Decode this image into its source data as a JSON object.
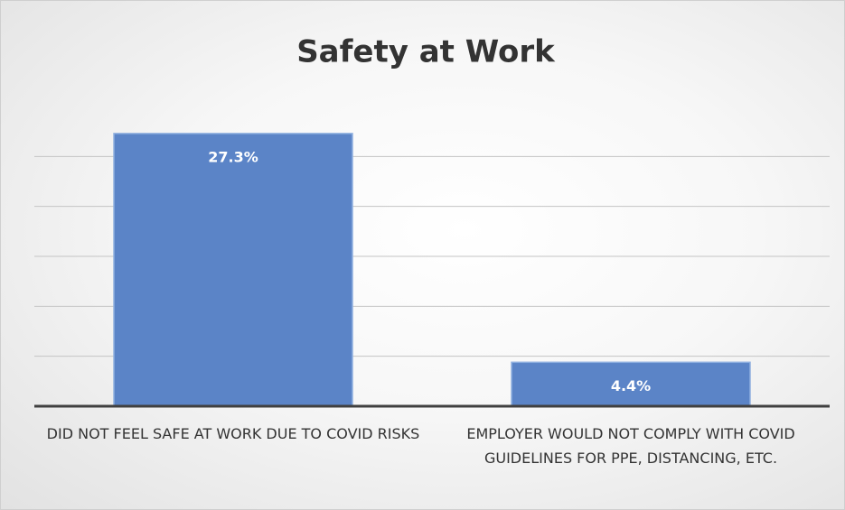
{
  "chart_data": {
    "type": "bar",
    "title": "Safety at Work",
    "categories": [
      "DID NOT FEEL SAFE AT WORK DUE TO COVID RISKS",
      "EMPLOYER WOULD NOT COMPLY WITH COVID GUIDELINES FOR PPE, DISTANCING, ETC."
    ],
    "values": [
      27.3,
      4.4
    ],
    "value_labels": [
      "27.3%",
      "4.4%"
    ],
    "color": "#5b84c7",
    "ylim": [
      0,
      30
    ],
    "yticks": [
      0,
      5,
      10,
      15,
      20,
      25
    ],
    "grid": true
  }
}
